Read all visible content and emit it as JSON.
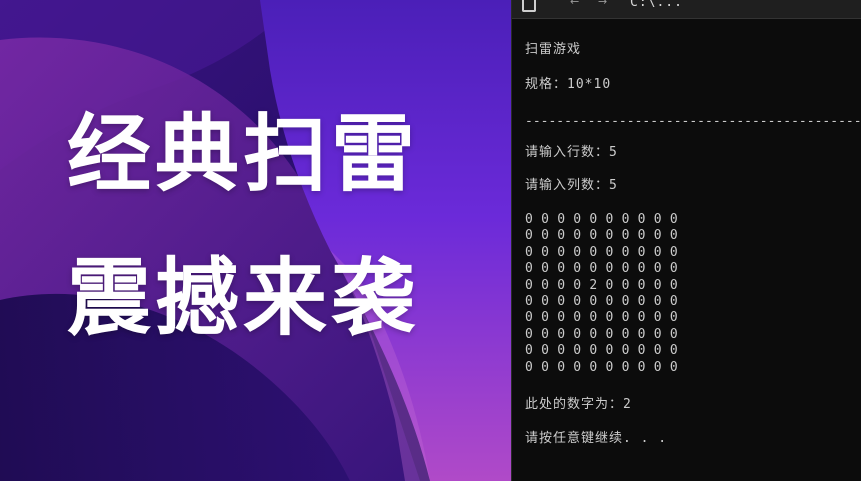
{
  "banner": {
    "headline_line1": "经典扫雷",
    "headline_line2": "震撼来袭",
    "colors": {
      "text": "#ffffff",
      "bg_deep": "#2a1266",
      "bg_purple": "#6a2bd8",
      "bg_magenta": "#8a2f9c"
    }
  },
  "console": {
    "window_title": "C:\\...",
    "nav_back_icon": "arrow-icon",
    "nav_forward_icon": "arrow-icon",
    "terminal_icon": "terminal-icon",
    "lines": {
      "game_title": "扫雷游戏",
      "size_label": "规格：",
      "size_value": "10*10",
      "separator": "--------------------------------------------------",
      "row_prompt": "请输入行数：",
      "row_value": "5",
      "col_prompt": "请输入列数：",
      "col_value": "5",
      "result_label": "此处的数字为：",
      "result_value": "2",
      "continue_prompt": "请按任意键继续. . ."
    },
    "board": [
      [
        "0",
        "0",
        "0",
        "0",
        "0",
        "0",
        "0",
        "0",
        "0",
        "0"
      ],
      [
        "0",
        "0",
        "0",
        "0",
        "0",
        "0",
        "0",
        "0",
        "0",
        "0"
      ],
      [
        "0",
        "0",
        "0",
        "0",
        "0",
        "0",
        "0",
        "0",
        "0",
        "0"
      ],
      [
        "0",
        "0",
        "0",
        "0",
        "0",
        "0",
        "0",
        "0",
        "0",
        "0"
      ],
      [
        "0",
        "0",
        "0",
        "0",
        "2",
        "0",
        "0",
        "0",
        "0",
        "0"
      ],
      [
        "0",
        "0",
        "0",
        "0",
        "0",
        "0",
        "0",
        "0",
        "0",
        "0"
      ],
      [
        "0",
        "0",
        "0",
        "0",
        "0",
        "0",
        "0",
        "0",
        "0",
        "0"
      ],
      [
        "0",
        "0",
        "0",
        "0",
        "0",
        "0",
        "0",
        "0",
        "0",
        "0"
      ],
      [
        "0",
        "0",
        "0",
        "0",
        "0",
        "0",
        "0",
        "0",
        "0",
        "0"
      ],
      [
        "0",
        "0",
        "0",
        "0",
        "0",
        "0",
        "0",
        "0",
        "0",
        "0"
      ]
    ],
    "colors": {
      "background": "#0c0c0c",
      "text": "#cccccc"
    }
  }
}
